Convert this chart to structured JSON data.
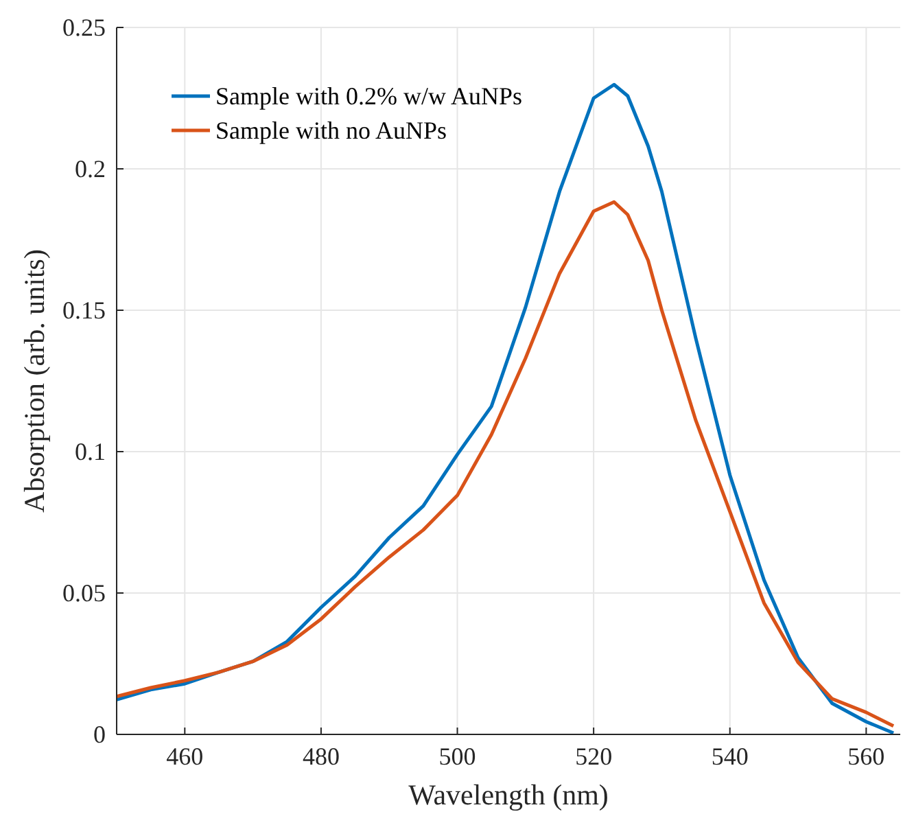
{
  "chart_data": {
    "type": "line",
    "xlabel": "Wavelength (nm)",
    "ylabel": "Absorption (arb. units)",
    "x": [
      450,
      455,
      460,
      465,
      470,
      475,
      480,
      485,
      490,
      495,
      500,
      505,
      510,
      515,
      520,
      523,
      525,
      528,
      530,
      535,
      540,
      545,
      550,
      555,
      560,
      564
    ],
    "series": [
      {
        "name": "Sample with 0.2% w/w AuNPs",
        "color": "#0072bd",
        "values": [
          0.0123,
          0.0158,
          0.0179,
          0.022,
          0.0258,
          0.0328,
          0.0449,
          0.0559,
          0.0696,
          0.0808,
          0.099,
          0.116,
          0.151,
          0.192,
          0.225,
          0.2298,
          0.2258,
          0.208,
          0.192,
          0.14,
          0.0917,
          0.0546,
          0.0271,
          0.011,
          0.0045,
          0.0005
        ]
      },
      {
        "name": "Sample with no AuNPs",
        "color": "#d95319",
        "values": [
          0.0134,
          0.0165,
          0.019,
          0.022,
          0.0258,
          0.0316,
          0.0408,
          0.0522,
          0.0627,
          0.0723,
          0.0845,
          0.106,
          0.133,
          0.163,
          0.185,
          0.1883,
          0.1838,
          0.1676,
          0.15,
          0.111,
          0.0788,
          0.0465,
          0.0255,
          0.0126,
          0.0078,
          0.003
        ]
      }
    ],
    "xlim": [
      450,
      565
    ],
    "xticks": [
      460,
      480,
      500,
      520,
      540,
      560
    ],
    "ylim": [
      0,
      0.25
    ],
    "yticks": [
      0,
      0.05,
      0.1,
      0.15,
      0.2,
      0.25
    ],
    "grid": true,
    "legend": "top left",
    "line_style": "solid",
    "marker": "none"
  }
}
